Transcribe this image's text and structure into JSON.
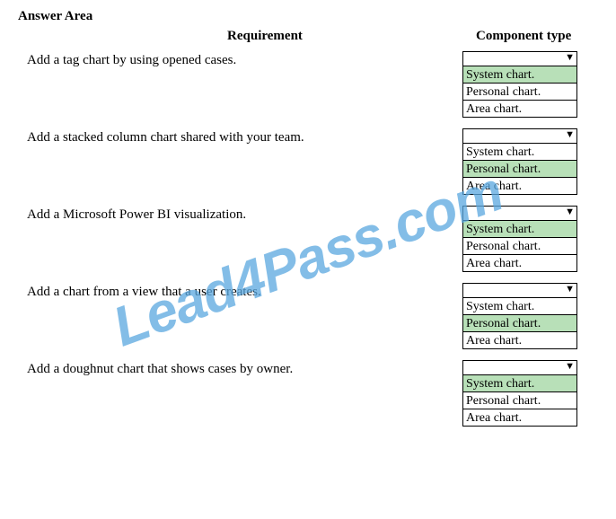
{
  "title": "Answer Area",
  "headers": {
    "requirement": "Requirement",
    "component_type": "Component type"
  },
  "rows": [
    {
      "requirement": "Add a tag chart by using opened cases.",
      "options": [
        {
          "label": "System chart.",
          "highlighted": true
        },
        {
          "label": "Personal chart.",
          "highlighted": false
        },
        {
          "label": "Area chart.",
          "highlighted": false
        }
      ]
    },
    {
      "requirement": "Add a stacked column chart shared with your team.",
      "options": [
        {
          "label": "System chart.",
          "highlighted": false
        },
        {
          "label": "Personal chart.",
          "highlighted": true
        },
        {
          "label": "Area chart.",
          "highlighted": false
        }
      ]
    },
    {
      "requirement": "Add a Microsoft Power BI visualization.",
      "options": [
        {
          "label": "System chart.",
          "highlighted": true
        },
        {
          "label": "Personal chart.",
          "highlighted": false
        },
        {
          "label": "Area chart.",
          "highlighted": false
        }
      ]
    },
    {
      "requirement": "Add a chart from a view that a user creates.",
      "options": [
        {
          "label": "System chart.",
          "highlighted": false
        },
        {
          "label": "Personal chart.",
          "highlighted": true
        },
        {
          "label": "Area chart.",
          "highlighted": false
        }
      ]
    },
    {
      "requirement": "Add a doughnut chart that shows cases by owner.",
      "options": [
        {
          "label": "System chart.",
          "highlighted": true
        },
        {
          "label": "Personal chart.",
          "highlighted": false
        },
        {
          "label": "Area chart.",
          "highlighted": false
        }
      ]
    }
  ],
  "watermark": "Lead4Pass.com"
}
